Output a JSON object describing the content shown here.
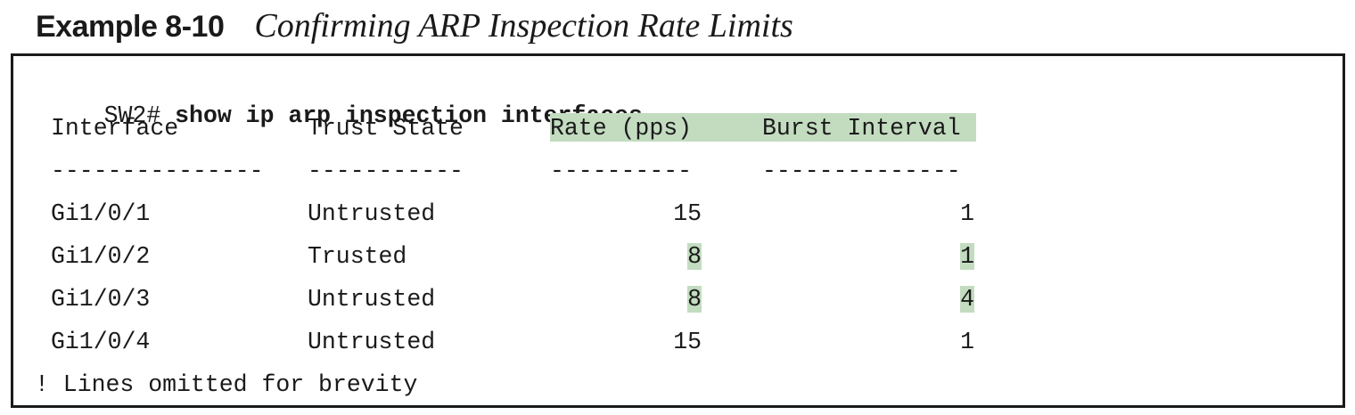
{
  "caption": {
    "label": "Example 8-10",
    "title": "Confirming ARP Inspection Rate Limits"
  },
  "code": {
    "prompt": "SW2#",
    "command": "show ip arp inspection interfaces",
    "headers": {
      "interface": "Interface",
      "trust_state": "Trust State",
      "rate": "Rate (pps)",
      "burst": "Burst Interval"
    },
    "dashes": {
      "interface": "---------------",
      "trust_state": "-----------",
      "rate": "----------",
      "burst": "--------------"
    },
    "rows": [
      {
        "interface": "Gi1/0/1",
        "trust_state": "Untrusted",
        "rate": "15",
        "burst": "1"
      },
      {
        "interface": "Gi1/0/2",
        "trust_state": "Trusted",
        "rate": "8",
        "burst": "1"
      },
      {
        "interface": "Gi1/0/3",
        "trust_state": "Untrusted",
        "rate": "8",
        "burst": "4"
      },
      {
        "interface": "Gi1/0/4",
        "trust_state": "Untrusted",
        "rate": "15",
        "burst": "1"
      }
    ],
    "footer": "! Lines omitted for brevity"
  },
  "colors": {
    "highlight": "#c3dcc0",
    "text": "#1a1a1a",
    "border": "#1a1a1a"
  }
}
